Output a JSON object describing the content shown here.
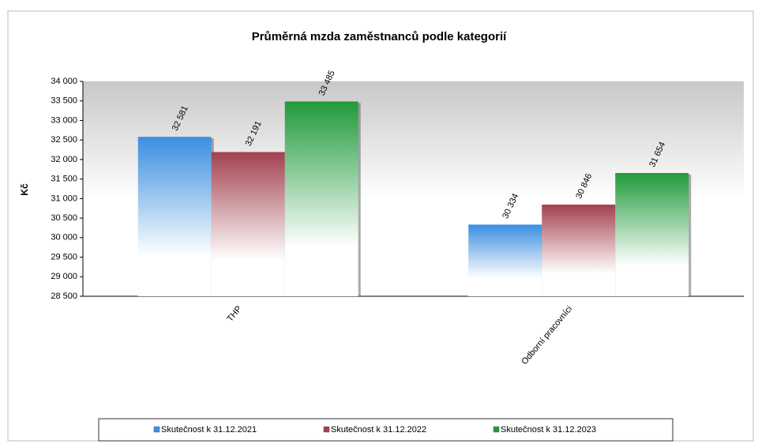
{
  "chart_data": {
    "type": "bar",
    "title": "Průměrná mzda zaměstnanců podle kategorií",
    "y_label": "Kč",
    "categories": [
      "THP",
      "Odborní pracovníci"
    ],
    "series": [
      {
        "name": "Skutečnost k 31.12.2021",
        "color": "#3a8ee0",
        "values": [
          32581,
          30334
        ],
        "value_labels": [
          "32 581",
          "30 334"
        ]
      },
      {
        "name": "Skutečnost k 31.12.2022",
        "color": "#a2414f",
        "values": [
          32191,
          30846
        ],
        "value_labels": [
          "32 191",
          "30 846"
        ]
      },
      {
        "name": "Skutečnost k 31.12.2023",
        "color": "#1f9a3b",
        "values": [
          33485,
          31654
        ],
        "value_labels": [
          "33 485",
          "31 654"
        ]
      }
    ],
    "ylim": [
      28500,
      34000
    ],
    "yticks": [
      {
        "value": 28500,
        "label": "28 500"
      },
      {
        "value": 29000,
        "label": "29 000"
      },
      {
        "value": 29500,
        "label": "29 500"
      },
      {
        "value": 30000,
        "label": "30 000"
      },
      {
        "value": 30500,
        "label": "30 500"
      },
      {
        "value": 31000,
        "label": "31 000"
      },
      {
        "value": 31500,
        "label": "31 500"
      },
      {
        "value": 32000,
        "label": "32 000"
      },
      {
        "value": 32500,
        "label": "32 500"
      },
      {
        "value": 33000,
        "label": "33 000"
      },
      {
        "value": 33500,
        "label": "33 500"
      },
      {
        "value": 34000,
        "label": "34 000"
      }
    ],
    "legend": "bottom"
  }
}
